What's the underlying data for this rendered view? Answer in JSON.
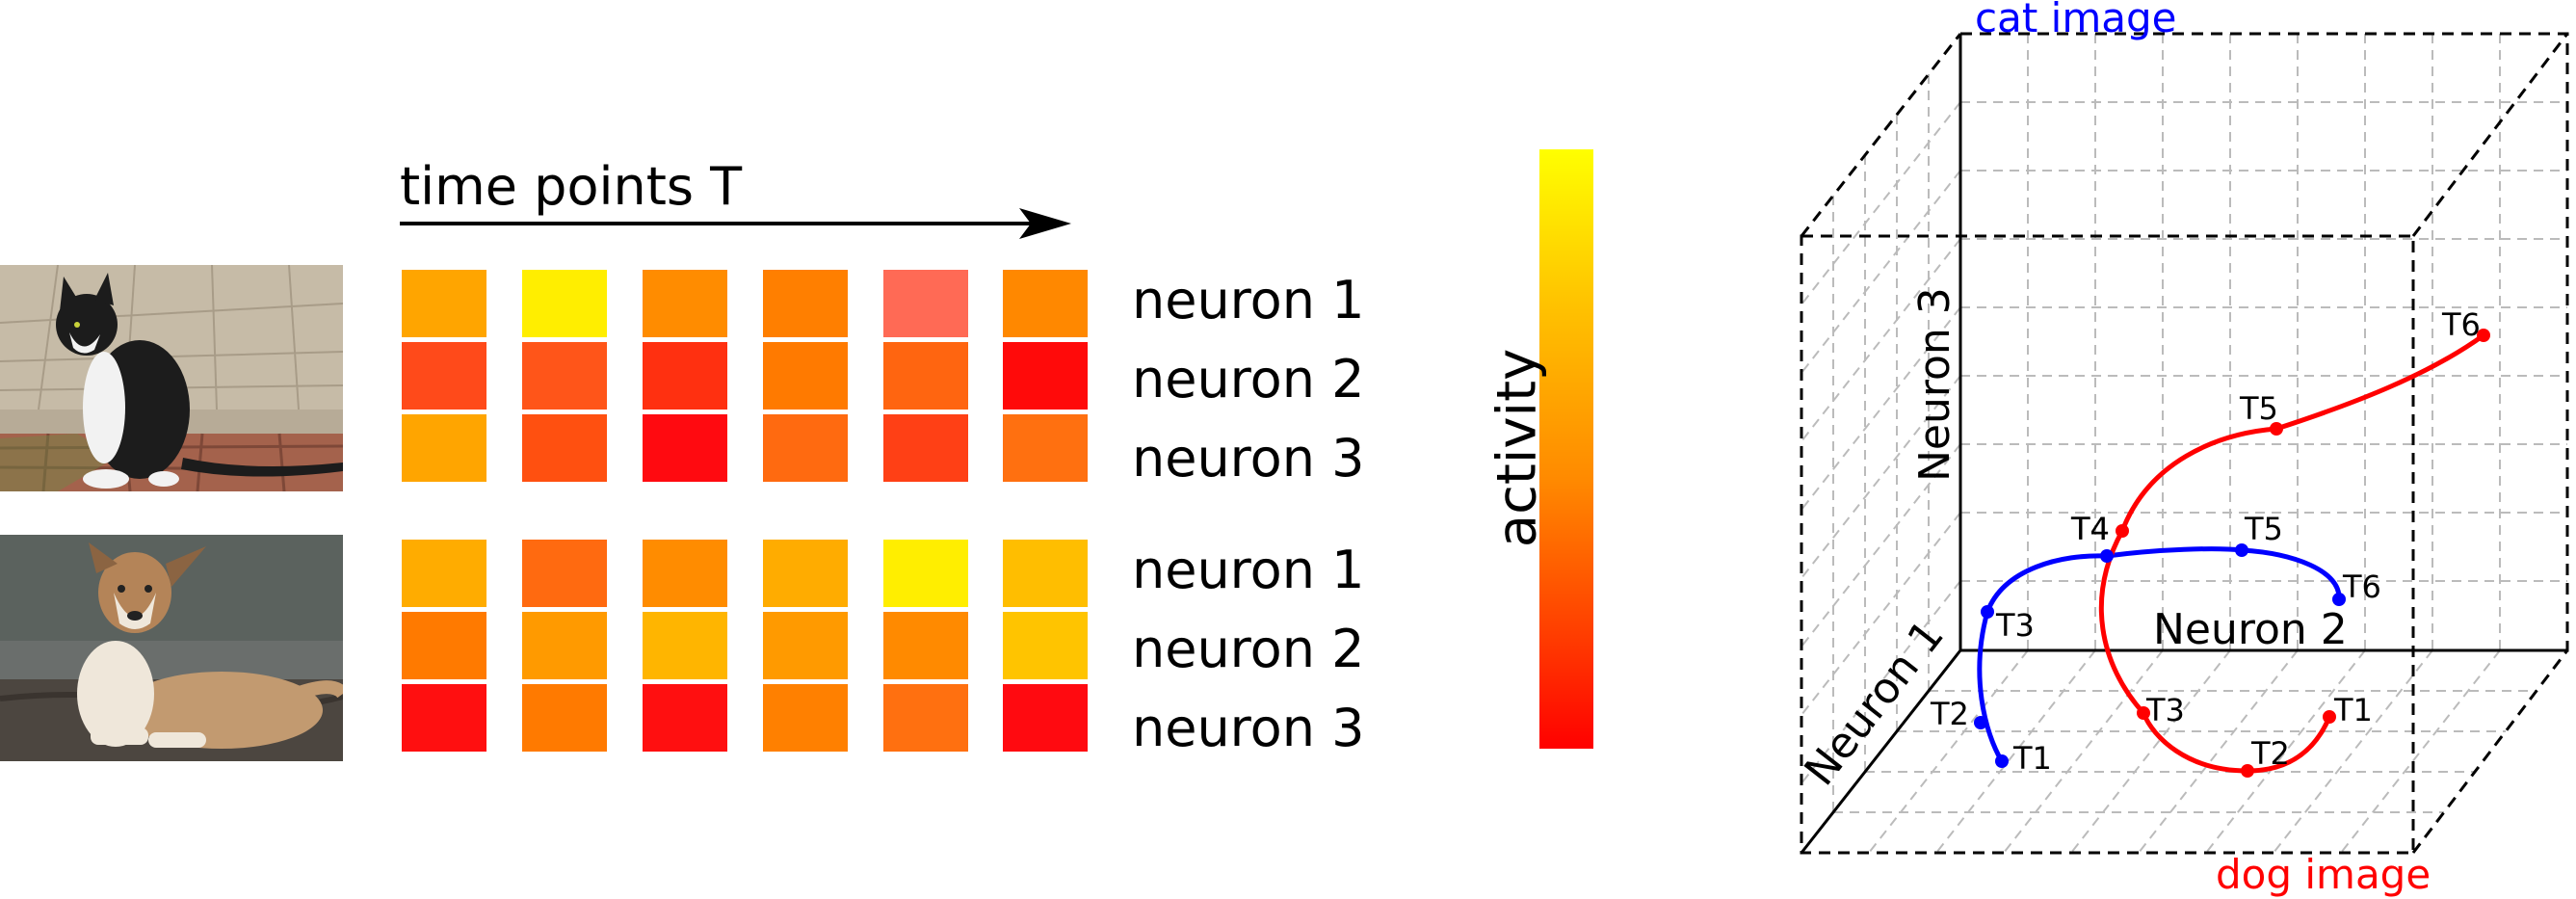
{
  "heatmap": {
    "time_axis_label": "time points T",
    "colorbar_label": "activity",
    "colorbar_colors": [
      "#ffff00",
      "#ffc400",
      "#ff8a00",
      "#ff3a00",
      "#ff0000"
    ],
    "cat": {
      "row_labels": [
        "neuron 1",
        "neuron 2",
        "neuron 3"
      ],
      "cells": [
        [
          "#ffa500",
          "#ffee00",
          "#ff8c00",
          "#ff7f00",
          "#ff6a55",
          "#ff8800"
        ],
        [
          "#ff4a1a",
          "#ff5519",
          "#ff3010",
          "#ff7a00",
          "#ff6510",
          "#ff0a0a"
        ],
        [
          "#ffa500",
          "#ff5010",
          "#ff0a10",
          "#ff6a10",
          "#ff4015",
          "#ff7010"
        ]
      ]
    },
    "dog": {
      "row_labels": [
        "neuron 1",
        "neuron 2",
        "neuron 3"
      ],
      "cells": [
        [
          "#ffac00",
          "#ff6a10",
          "#ff8c00",
          "#ffac00",
          "#ffee00",
          "#ffbe00"
        ],
        [
          "#ff7a00",
          "#ff9a00",
          "#ffb500",
          "#ff9a00",
          "#ff8a00",
          "#ffc400"
        ],
        [
          "#ff0f10",
          "#ff7a00",
          "#ff0f10",
          "#ff8000",
          "#ff7010",
          "#ff0a10"
        ]
      ]
    }
  },
  "trajectory_plot": {
    "axis_labels": {
      "x": "Neuron 2",
      "y": "Neuron 3",
      "z": "Neuron 1"
    },
    "corner_labels": {
      "cat": "cat image",
      "dog": "dog image"
    },
    "colors": {
      "cat": "#0000ff",
      "dog": "#ff0000",
      "cube": "#000000",
      "grid": "#bbbbbb"
    },
    "cat_points": [
      "T1",
      "T2",
      "T3",
      "T4",
      "T5",
      "T6"
    ],
    "dog_points": [
      "T1",
      "T2",
      "T3",
      "T4",
      "T5",
      "T6"
    ]
  }
}
